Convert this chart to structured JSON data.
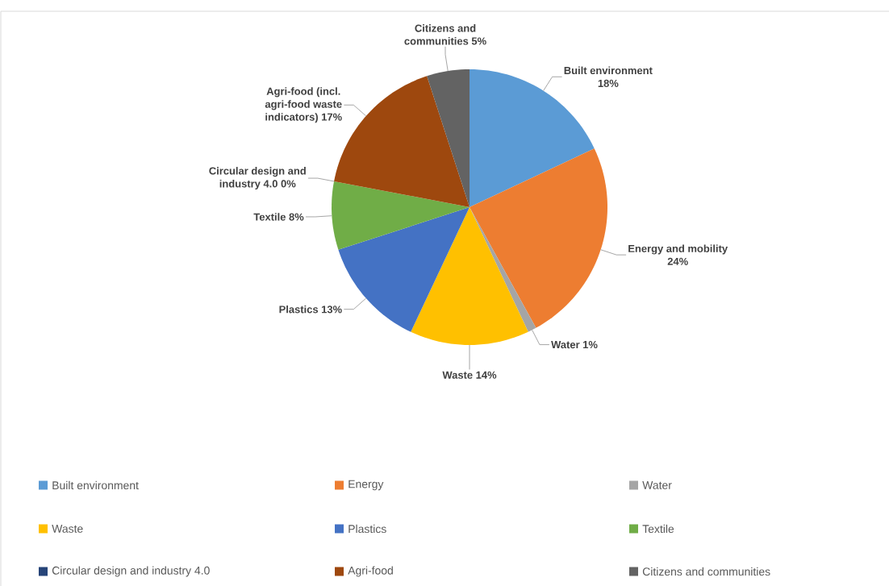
{
  "chart_data": {
    "type": "pie",
    "categories": [
      "Built environment",
      "Energy",
      "Water",
      "Waste",
      "Plastics",
      "Textile",
      "Circular design and industry 4.0",
      "Agri-food",
      "Citizens and communities"
    ],
    "values": [
      18,
      24,
      1,
      14,
      13,
      8,
      0,
      17,
      5
    ],
    "colors": [
      "#5b9bd5",
      "#ed7d31",
      "#a5a5a5",
      "#ffc000",
      "#4472c4",
      "#70ad47",
      "#264478",
      "#9e480e",
      "#636363"
    ],
    "value_labels": [
      "Built environment 18%",
      "Energy and mobility 24%",
      "Water 1%",
      "Waste 14%",
      "Plastics 13%",
      "Textile 8%",
      "Circular design and industry 4.0 0%",
      "Agri-food (incl. agri-food waste indicators) 17%",
      "Citizens and communities 5%"
    ],
    "legend": "bottom"
  }
}
